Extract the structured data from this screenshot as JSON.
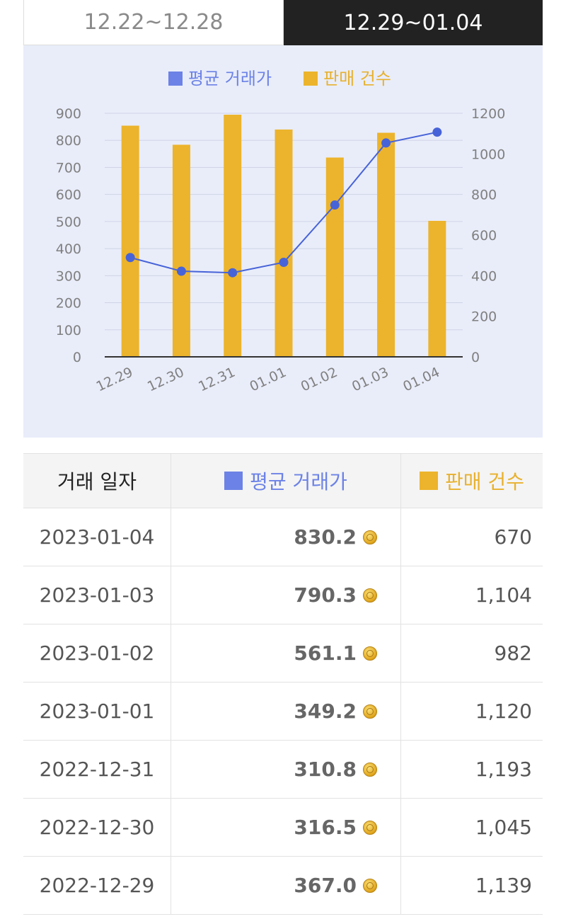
{
  "tabs": [
    {
      "label": "12.22~12.28",
      "active": false
    },
    {
      "label": "12.29~01.04",
      "active": true
    }
  ],
  "chart_data": {
    "type": "bar+line",
    "legend": [
      "평균 거래가",
      "판매 건수"
    ],
    "categories": [
      "12.29",
      "12.30",
      "12.31",
      "01.01",
      "01.02",
      "01.03",
      "01.04"
    ],
    "series": [
      {
        "name": "평균 거래가",
        "type": "line",
        "axis": "left",
        "color": "#4763d8",
        "values": [
          367.0,
          316.5,
          310.8,
          349.2,
          561.1,
          790.3,
          830.2
        ]
      },
      {
        "name": "판매 건수",
        "type": "bar",
        "axis": "right",
        "color": "#ecb42c",
        "values": [
          1139,
          1045,
          1193,
          1120,
          982,
          1104,
          670
        ]
      }
    ],
    "left_axis": {
      "min": 0,
      "max": 900,
      "ticks": [
        "0",
        "100",
        "200",
        "300",
        "400",
        "500",
        "600",
        "700",
        "800",
        "900"
      ]
    },
    "right_axis": {
      "min": 0,
      "max": 1200,
      "ticks": [
        "0",
        "200",
        "400",
        "600",
        "800",
        "1000",
        "1200"
      ]
    }
  },
  "table": {
    "headers": {
      "date": "거래 일자",
      "price": "평균 거래가",
      "count": "판매 건수"
    },
    "rows": [
      {
        "date": "2023-01-04",
        "price": "830.2",
        "count": "670"
      },
      {
        "date": "2023-01-03",
        "price": "790.3",
        "count": "1,104"
      },
      {
        "date": "2023-01-02",
        "price": "561.1",
        "count": "982"
      },
      {
        "date": "2023-01-01",
        "price": "349.2",
        "count": "1,120"
      },
      {
        "date": "2022-12-31",
        "price": "310.8",
        "count": "1,193"
      },
      {
        "date": "2022-12-30",
        "price": "316.5",
        "count": "1,045"
      },
      {
        "date": "2022-12-29",
        "price": "367.0",
        "count": "1,139"
      }
    ]
  }
}
